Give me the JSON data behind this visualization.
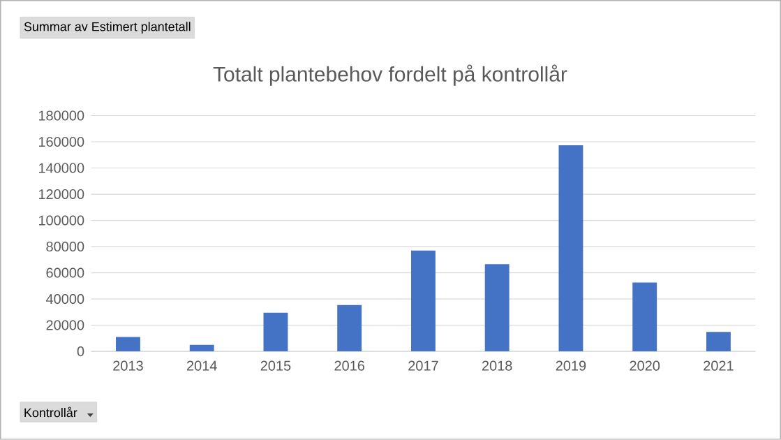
{
  "chart_data": {
    "type": "bar",
    "title": "Totalt plantebehov fordelt på kontrollår",
    "categories": [
      "2013",
      "2014",
      "2015",
      "2016",
      "2017",
      "2018",
      "2019",
      "2020",
      "2021"
    ],
    "values": [
      11000,
      5000,
      29500,
      35400,
      77000,
      66600,
      157300,
      52500,
      14800
    ],
    "color": "#4472c4",
    "ylim": [
      0,
      180000
    ],
    "yticks": [
      0,
      20000,
      40000,
      60000,
      80000,
      100000,
      120000,
      140000,
      160000,
      180000
    ],
    "grid": "y",
    "annotations": [
      "Summar av Estimert plantetall",
      "Kontrollår"
    ]
  }
}
